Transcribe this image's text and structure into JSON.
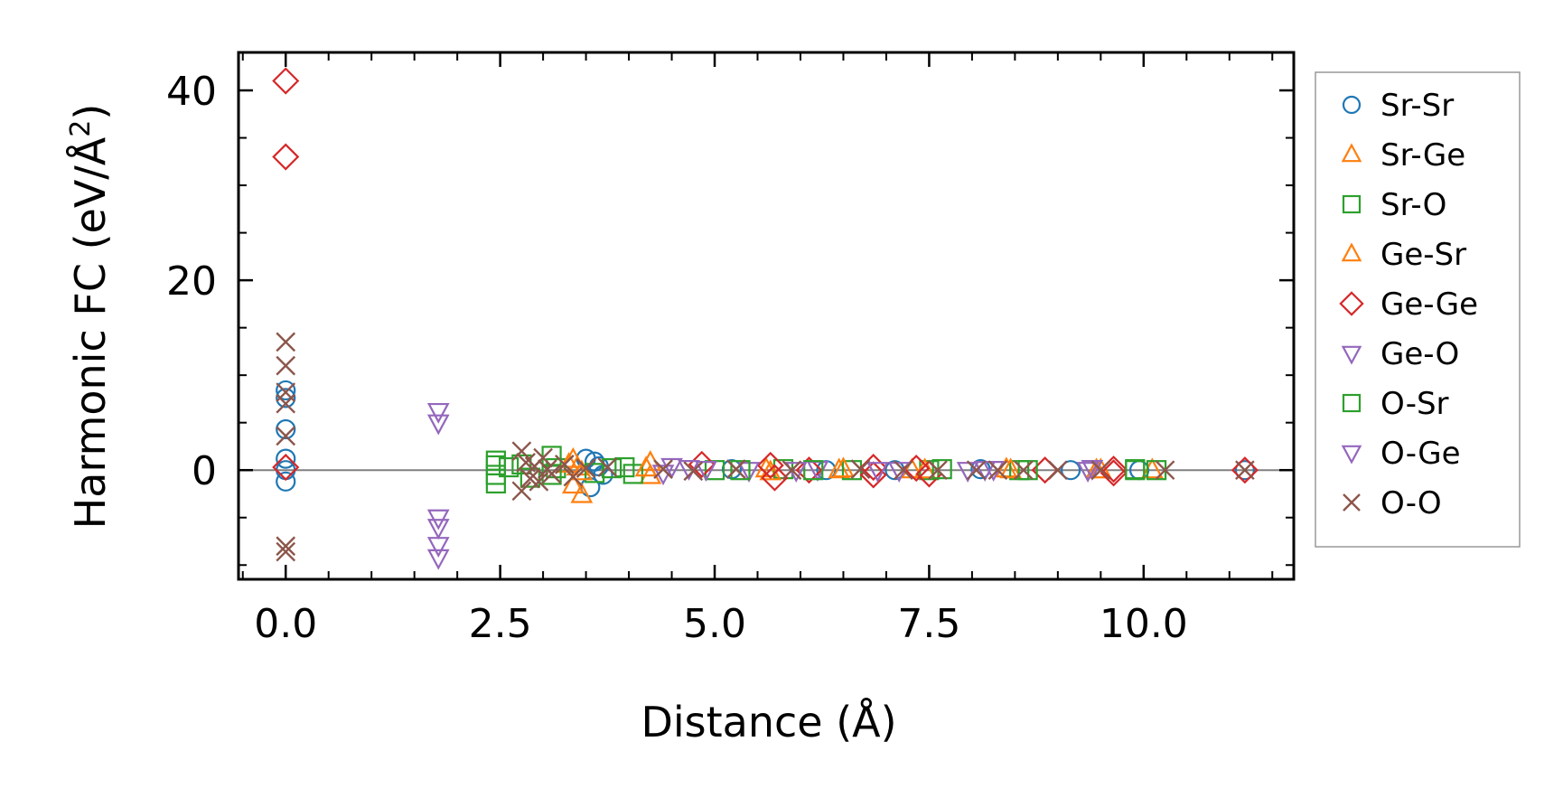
{
  "chart_data": {
    "type": "scatter",
    "title": "",
    "xlabel": "Distance (Å)",
    "ylabel": "Harmonic FC (eV/Å²)",
    "ylabel_base": "Harmonic FC (eV/Å",
    "ylabel_sup": "2",
    "ylabel_tail": ")",
    "xlim": [
      -0.55,
      11.75
    ],
    "ylim": [
      -11.5,
      44
    ],
    "xticks": [
      0.0,
      2.5,
      5.0,
      7.5,
      10.0
    ],
    "xtick_labels": [
      "0.0",
      "2.5",
      "5.0",
      "7.5",
      "10.0"
    ],
    "yticks": [
      0,
      20,
      40
    ],
    "ytick_labels": [
      "0",
      "20",
      "40"
    ],
    "zero_line": true,
    "legend_position": "right outside",
    "series": [
      {
        "name": "Sr-Sr",
        "marker": "circle",
        "color": "#1f77b4",
        "points": [
          [
            0,
            8.4
          ],
          [
            0,
            7.6
          ],
          [
            0,
            4.3
          ],
          [
            0,
            1.2
          ],
          [
            0,
            0
          ],
          [
            0,
            -1.2
          ],
          [
            3.5,
            1.2
          ],
          [
            3.6,
            0.9
          ],
          [
            3.7,
            -0.5
          ],
          [
            3.55,
            -1.8
          ],
          [
            3.65,
            0.4
          ],
          [
            5.2,
            0.1
          ],
          [
            6.3,
            0
          ],
          [
            7.1,
            0
          ],
          [
            8.1,
            0.1
          ],
          [
            9.15,
            0
          ],
          [
            9.95,
            0
          ],
          [
            11.18,
            0
          ]
        ]
      },
      {
        "name": "Sr-Ge",
        "marker": "triangle-up",
        "color": "#ff7f0e",
        "points": [
          [
            3.35,
            1.1
          ],
          [
            3.35,
            -1.6
          ],
          [
            3.45,
            -2.6
          ],
          [
            3.4,
            0.3
          ],
          [
            4.25,
            0.8
          ],
          [
            4.25,
            -0.6
          ],
          [
            5.6,
            0.1
          ],
          [
            6.45,
            0
          ],
          [
            7.3,
            0
          ],
          [
            8.4,
            0.1
          ],
          [
            9.45,
            0
          ],
          [
            10.1,
            0
          ]
        ]
      },
      {
        "name": "Sr-O",
        "marker": "square",
        "color": "#2ca02c",
        "points": [
          [
            2.45,
            0.5
          ],
          [
            2.45,
            -0.5
          ],
          [
            2.45,
            -1.4
          ],
          [
            2.45,
            1.0
          ],
          [
            2.75,
            0.6
          ],
          [
            2.85,
            -0.8
          ],
          [
            3.1,
            1.5
          ],
          [
            3.15,
            0.2
          ],
          [
            3.6,
            -0.3
          ],
          [
            3.95,
            0.3
          ],
          [
            4.05,
            -0.4
          ],
          [
            5.0,
            0
          ],
          [
            5.8,
            0.1
          ],
          [
            6.6,
            0
          ],
          [
            7.5,
            0
          ],
          [
            8.55,
            0
          ],
          [
            9.9,
            0
          ],
          [
            10.15,
            0
          ]
        ]
      },
      {
        "name": "Ge-Sr",
        "marker": "triangle-up",
        "color": "#ff7f0e",
        "points": [
          [
            3.3,
            0.6
          ],
          [
            3.45,
            -0.2
          ],
          [
            4.2,
            0.2
          ],
          [
            5.65,
            -0.2
          ],
          [
            6.5,
            0.1
          ],
          [
            7.45,
            0
          ],
          [
            8.45,
            0
          ],
          [
            9.5,
            0
          ]
        ]
      },
      {
        "name": "Ge-Ge",
        "marker": "diamond",
        "color": "#d62728",
        "points": [
          [
            0,
            41
          ],
          [
            0,
            33
          ],
          [
            0,
            0.3
          ],
          [
            4.85,
            0.6
          ],
          [
            5.65,
            0.5
          ],
          [
            5.7,
            -0.8
          ],
          [
            6.1,
            0
          ],
          [
            6.85,
            0.3
          ],
          [
            6.85,
            -0.5
          ],
          [
            7.35,
            0.2
          ],
          [
            7.5,
            -0.4
          ],
          [
            8.85,
            0
          ],
          [
            9.65,
            0.1
          ],
          [
            9.65,
            -0.3
          ],
          [
            11.18,
            0
          ]
        ]
      },
      {
        "name": "Ge-O",
        "marker": "triangle-down",
        "color": "#9467bd",
        "points": [
          [
            1.78,
            6.2
          ],
          [
            1.78,
            5.0
          ],
          [
            1.78,
            -5.0
          ],
          [
            1.78,
            -6.0
          ],
          [
            1.78,
            -7.9
          ],
          [
            1.78,
            -9.2
          ],
          [
            4.5,
            0.4
          ],
          [
            4.9,
            0.1
          ],
          [
            5.4,
            0
          ],
          [
            6.2,
            0.1
          ],
          [
            7.15,
            0
          ],
          [
            8.15,
            0.1
          ],
          [
            9.35,
            0
          ]
        ]
      },
      {
        "name": "O-Sr",
        "marker": "square",
        "color": "#2ca02c",
        "points": [
          [
            2.6,
            0.3
          ],
          [
            3.1,
            -0.5
          ],
          [
            3.8,
            0.2
          ],
          [
            5.3,
            0
          ],
          [
            6.15,
            0
          ],
          [
            7.65,
            0.1
          ],
          [
            8.65,
            0
          ],
          [
            9.9,
            0.1
          ]
        ]
      },
      {
        "name": "O-Ge",
        "marker": "triangle-down",
        "color": "#9467bd",
        "points": [
          [
            4.4,
            -0.3
          ],
          [
            4.7,
            0.2
          ],
          [
            5.95,
            0
          ],
          [
            6.9,
            0
          ],
          [
            7.95,
            0
          ],
          [
            8.25,
            0.1
          ],
          [
            9.4,
            0.2
          ]
        ]
      },
      {
        "name": "O-O",
        "marker": "cross",
        "color": "#8c564b",
        "points": [
          [
            0,
            13.5
          ],
          [
            0,
            11.0
          ],
          [
            0,
            8.2
          ],
          [
            0,
            7.0
          ],
          [
            0,
            3.6
          ],
          [
            0,
            -8.0
          ],
          [
            0,
            -8.6
          ],
          [
            2.75,
            2.0
          ],
          [
            2.75,
            -2.2
          ],
          [
            2.8,
            0.8
          ],
          [
            2.85,
            -0.9
          ],
          [
            2.9,
            0.4
          ],
          [
            2.95,
            -1.2
          ],
          [
            3.0,
            1.3
          ],
          [
            3.05,
            0.1
          ],
          [
            3.1,
            -0.4
          ],
          [
            3.25,
            0.6
          ],
          [
            3.35,
            -0.7
          ],
          [
            3.5,
            0.2
          ],
          [
            3.75,
            0.3
          ],
          [
            4.4,
            0.1
          ],
          [
            4.75,
            -0.1
          ],
          [
            5.25,
            0.1
          ],
          [
            5.9,
            0
          ],
          [
            6.7,
            0.1
          ],
          [
            7.2,
            0
          ],
          [
            7.6,
            0
          ],
          [
            8.05,
            0
          ],
          [
            8.3,
            0
          ],
          [
            8.6,
            0
          ],
          [
            9.0,
            0
          ],
          [
            9.5,
            0
          ],
          [
            10.25,
            0
          ],
          [
            11.18,
            0
          ]
        ]
      }
    ]
  }
}
